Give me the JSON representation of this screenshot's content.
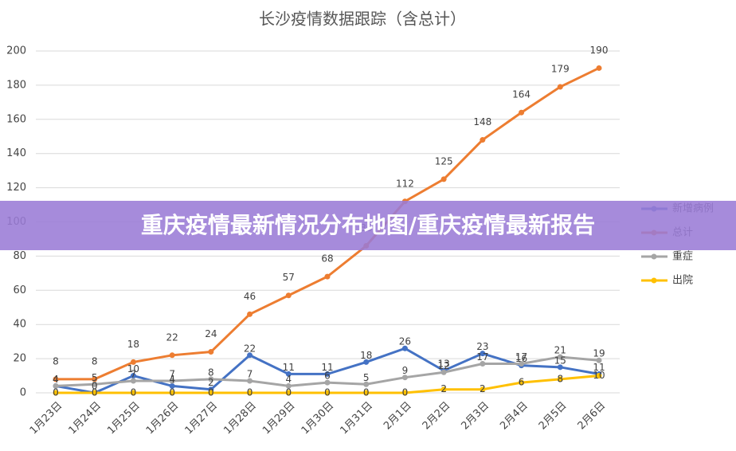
{
  "chart_data": {
    "type": "line",
    "title": "长沙疫情数据跟踪（含总计）",
    "categories": [
      "1月23日",
      "1月24日",
      "1月25日",
      "1月26日",
      "1月27日",
      "1月28日",
      "1月29日",
      "1月30日",
      "1月31日",
      "2月1日",
      "2月2日",
      "2月3日",
      "2月4日",
      "2月5日",
      "2月6日"
    ],
    "series": [
      {
        "name": "新增病例",
        "color": "#4472c4",
        "values": [
          4,
          0,
          10,
          4,
          2,
          22,
          11,
          11,
          18,
          26,
          13,
          23,
          16,
          15,
          11
        ]
      },
      {
        "name": "总计",
        "color": "#ed7d31",
        "values": [
          8,
          8,
          18,
          22,
          24,
          46,
          57,
          68,
          86,
          112,
          125,
          148,
          164,
          179,
          190
        ]
      },
      {
        "name": "重症",
        "color": "#a5a5a5",
        "values": [
          4,
          5,
          7,
          7,
          8,
          7,
          4,
          6,
          5,
          9,
          12,
          17,
          17,
          21,
          19
        ]
      },
      {
        "name": "出院",
        "color": "#ffc000",
        "values": [
          0,
          0,
          0,
          0,
          0,
          0,
          0,
          0,
          0,
          0,
          2,
          2,
          6,
          8,
          10
        ]
      }
    ],
    "ylim": [
      0,
      200
    ],
    "yticks": [
      0,
      20,
      40,
      60,
      80,
      100,
      120,
      140,
      160,
      180,
      200
    ],
    "grid": true,
    "legend": "right"
  },
  "banner": {
    "title": "重庆疫情最新情况分布地图/重庆疫情最新报告"
  }
}
